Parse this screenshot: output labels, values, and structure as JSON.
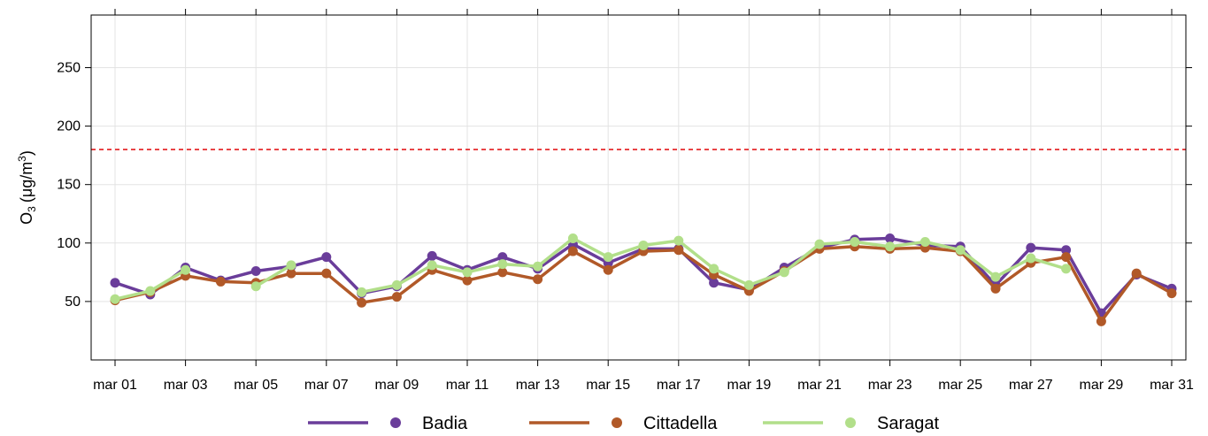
{
  "chart_data": {
    "type": "line",
    "title": "",
    "xlabel": "",
    "ylabel_main": "O",
    "ylabel_sub": "3",
    "ylabel_unit": "(μg/m",
    "ylabel_sup": "3",
    "ylabel_close": ")",
    "ylim": [
      0,
      295
    ],
    "yticks": [
      50,
      100,
      150,
      200,
      250
    ],
    "x_days": [
      1,
      2,
      3,
      4,
      5,
      6,
      7,
      8,
      9,
      10,
      11,
      12,
      13,
      14,
      15,
      16,
      17,
      18,
      19,
      20,
      21,
      22,
      23,
      24,
      25,
      26,
      27,
      28,
      29,
      30,
      31
    ],
    "xtick_days": [
      1,
      3,
      5,
      7,
      9,
      11,
      13,
      15,
      17,
      19,
      21,
      23,
      25,
      27,
      29,
      31
    ],
    "xtick_labels": [
      "mar 01",
      "mar 03",
      "mar 05",
      "mar 07",
      "mar 09",
      "mar 11",
      "mar 13",
      "mar 15",
      "mar 17",
      "mar 19",
      "mar 21",
      "mar 23",
      "mar 25",
      "mar 27",
      "mar 29",
      "mar 31"
    ],
    "threshold": {
      "value": 180,
      "color": "#e31a1c"
    },
    "grid": true,
    "legend_position": "bottom",
    "series": [
      {
        "name": "Badia",
        "color": "#6a3d9a",
        "values": [
          66,
          56,
          79,
          68,
          76,
          80,
          88,
          57,
          63,
          89,
          77,
          88,
          78,
          99,
          83,
          95,
          95,
          66,
          60,
          79,
          96,
          103,
          104,
          98,
          97,
          64,
          96,
          94,
          40,
          73,
          61
        ]
      },
      {
        "name": "Cittadella",
        "color": "#b15928",
        "values": [
          51,
          58,
          72,
          67,
          66,
          74,
          74,
          49,
          54,
          77,
          68,
          75,
          69,
          93,
          77,
          93,
          94,
          73,
          59,
          76,
          95,
          97,
          95,
          96,
          93,
          61,
          83,
          88,
          33,
          74,
          57
        ]
      },
      {
        "name": "Saragat",
        "color": "#b2df8a",
        "values": [
          52,
          59,
          77,
          null,
          63,
          81,
          null,
          58,
          64,
          81,
          75,
          82,
          80,
          104,
          88,
          98,
          102,
          78,
          64,
          75,
          99,
          101,
          97,
          101,
          94,
          71,
          87,
          78,
          null,
          null,
          null
        ]
      }
    ]
  }
}
